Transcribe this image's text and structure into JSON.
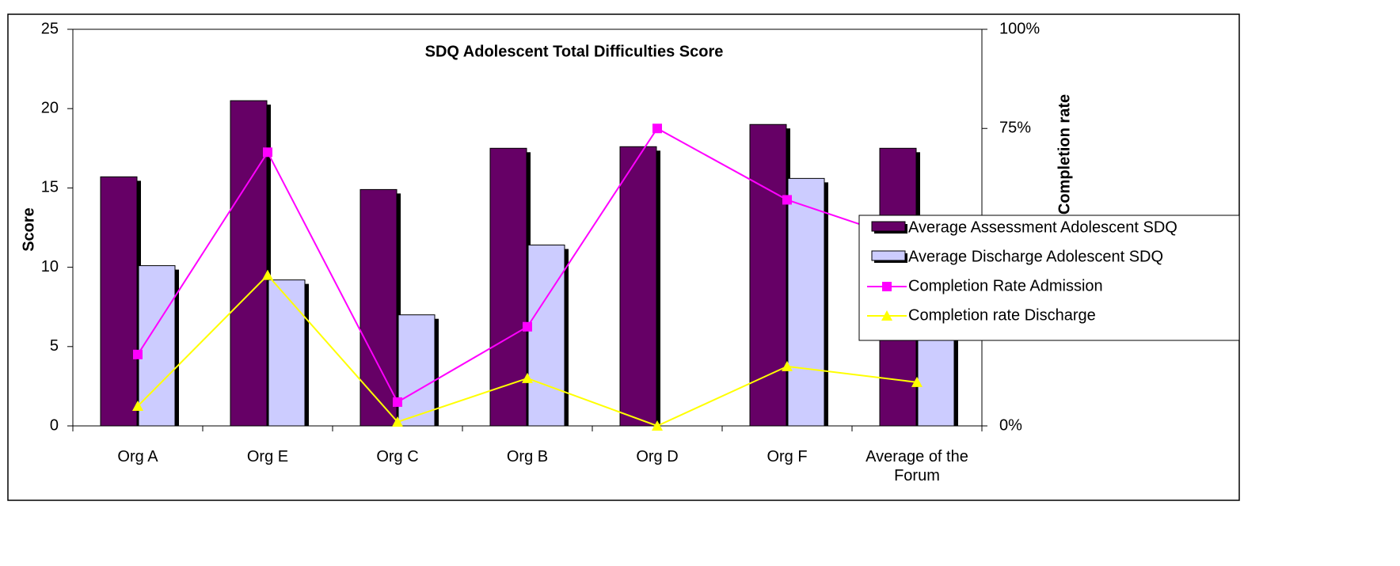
{
  "chart_data": {
    "type": "bar_line",
    "title": "SDQ Adolescent Total Difficulties Score",
    "y_label": "Score",
    "y2_label": "Completion rate",
    "categories": [
      "Org A",
      "Org E",
      "Org C",
      "Org B",
      "Org D",
      "Org F",
      "Average of the Forum"
    ],
    "series": [
      {
        "name": "Average Assessment Adolescent SDQ",
        "type": "bar",
        "color": "#660066",
        "values": [
          15.7,
          20.5,
          14.9,
          17.5,
          17.6,
          19.0,
          17.5
        ]
      },
      {
        "name": "Average Discharge Adolescent SDQ",
        "type": "bar",
        "color": "#ccccff",
        "values": [
          10.1,
          9.2,
          7.0,
          11.4,
          null,
          15.6,
          10.7
        ]
      },
      {
        "name": "Completion Rate Admission",
        "type": "line",
        "axis": "y2",
        "marker": "square",
        "color": "#ff00ff",
        "values": [
          18,
          69,
          6,
          25,
          75,
          57,
          46
        ]
      },
      {
        "name": "Completion rate Discharge",
        "type": "line",
        "axis": "y2",
        "marker": "triangle",
        "color": "#ffff00",
        "values": [
          5,
          38,
          1,
          12,
          0,
          15,
          11
        ]
      }
    ],
    "ylim": [
      0,
      25
    ],
    "yticks": [
      0,
      5,
      10,
      15,
      20,
      25
    ],
    "y2lim": [
      0,
      100
    ],
    "y2ticks": [
      {
        "value": 0,
        "label": "0%"
      },
      {
        "value": 25,
        "label": "25%"
      },
      {
        "value": 50,
        "label": "50%"
      },
      {
        "value": 75,
        "label": "75%"
      },
      {
        "value": 100,
        "label": "100%"
      }
    ],
    "legend": "right"
  }
}
